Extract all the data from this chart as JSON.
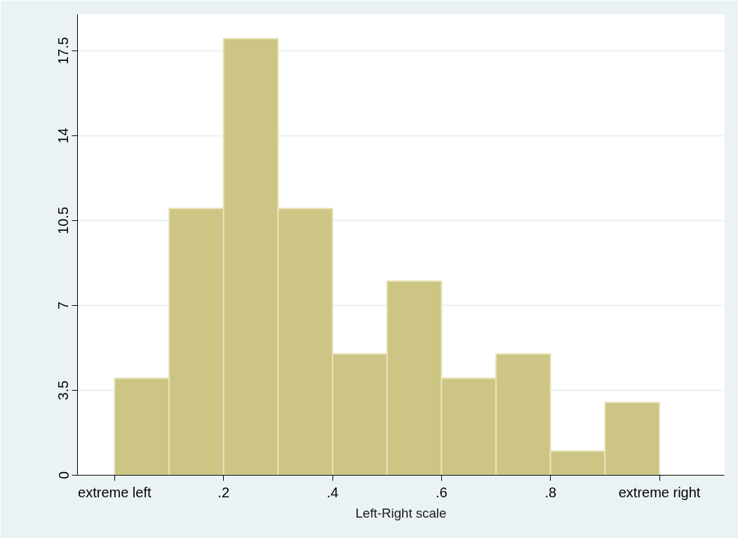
{
  "chart_data": {
    "type": "histogram",
    "xlabel": "Left-Right scale",
    "bins": [
      0,
      0.1,
      0.2,
      0.3,
      0.4,
      0.5,
      0.6,
      0.7,
      0.8,
      0.9,
      1.0
    ],
    "values": [
      4,
      11,
      18,
      11,
      5,
      8,
      4,
      5,
      1,
      3
    ],
    "color": "#cdc584",
    "xlim": [
      -0.068,
      1.119
    ],
    "ylim": [
      0,
      19
    ],
    "xticks": [
      {
        "value": 0,
        "label": "extreme left"
      },
      {
        "value": 0.2,
        "label": ".2"
      },
      {
        "value": 0.4,
        "label": ".4"
      },
      {
        "value": 0.6,
        "label": ".6"
      },
      {
        "value": 0.8,
        "label": ".8"
      },
      {
        "value": 1,
        "label": "extreme right"
      }
    ],
    "yticks": [
      0,
      3.5,
      7,
      10.5,
      14,
      17.5
    ],
    "grid": "y"
  }
}
